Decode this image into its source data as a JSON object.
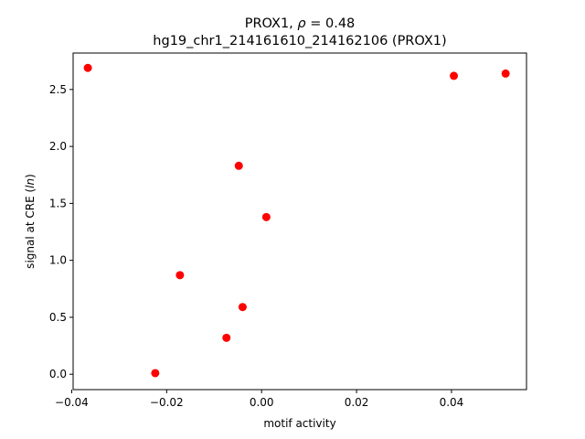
{
  "chart_data": {
    "type": "scatter",
    "title_prefix": "PROX1, ",
    "title_rho_symbol": "ρ",
    "title_rho_value": " = 0.48",
    "subtitle": "hg19_chr1_214161610_214162106 (PROX1)",
    "xlabel": "motif activity",
    "ylabel_prefix": "signal at CRE (",
    "ylabel_math": "ln",
    "ylabel_suffix": ")",
    "xlim": [
      -0.0397,
      0.0558
    ],
    "ylim": [
      -0.135,
      2.82
    ],
    "xticks": [
      -0.04,
      -0.02,
      0.0,
      0.02,
      0.04
    ],
    "xtick_labels": [
      "−0.04",
      "−0.02",
      "0.00",
      "0.02",
      "0.04"
    ],
    "yticks": [
      0.0,
      0.5,
      1.0,
      1.5,
      2.0,
      2.5
    ],
    "ytick_labels": [
      "0.0",
      "0.5",
      "1.0",
      "1.5",
      "2.0",
      "2.5"
    ],
    "point_color": "#ff0000",
    "grid": false,
    "points": [
      {
        "x": -0.0366,
        "y": 2.69
      },
      {
        "x": 0.0405,
        "y": 2.62
      },
      {
        "x": 0.0514,
        "y": 2.64
      },
      {
        "x": -0.0048,
        "y": 1.83
      },
      {
        "x": 0.001,
        "y": 1.38
      },
      {
        "x": -0.0172,
        "y": 0.87
      },
      {
        "x": -0.004,
        "y": 0.59
      },
      {
        "x": -0.0074,
        "y": 0.32
      },
      {
        "x": -0.0224,
        "y": 0.01
      }
    ]
  }
}
